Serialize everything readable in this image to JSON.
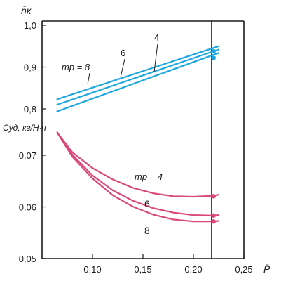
{
  "chart_data": [
    {
      "panel": "top",
      "type": "line",
      "ylabel": "n̄к",
      "ylim": [
        0.8,
        1.0
      ],
      "y_ticks": [
        "1,0",
        "0,9",
        "0,8"
      ],
      "legend_label": "mр = 8",
      "series_labels": [
        "6",
        "4"
      ],
      "series": [
        {
          "name": "8",
          "x": [
            0.065,
            0.225
          ],
          "values": [
            0.823,
            0.95
          ]
        },
        {
          "name": "6",
          "x": [
            0.065,
            0.225
          ],
          "values": [
            0.81,
            0.942
          ]
        },
        {
          "name": "4",
          "x": [
            0.065,
            0.225
          ],
          "values": [
            0.794,
            0.934
          ]
        }
      ],
      "markers": [
        {
          "x": 0.22,
          "y": 0.938
        },
        {
          "x": 0.22,
          "y": 0.922
        }
      ],
      "color": "#1fa8e0"
    },
    {
      "panel": "bottom",
      "type": "line",
      "ylabel": "Cуд, кг/Н·ч",
      "ylim": [
        0.05,
        0.077
      ],
      "y_ticks": [
        "0,07",
        "0,06",
        "0,05"
      ],
      "legend_label": "mр = 4",
      "series_labels": [
        "6",
        "8"
      ],
      "series": [
        {
          "name": "4",
          "x": [
            0.065,
            0.08,
            0.1,
            0.12,
            0.14,
            0.16,
            0.18,
            0.2,
            0.22,
            0.225
          ],
          "values": [
            0.0755,
            0.0715,
            0.0683,
            0.066,
            0.0643,
            0.0632,
            0.0626,
            0.0625,
            0.0627,
            0.0629
          ]
        },
        {
          "name": "6",
          "x": [
            0.065,
            0.08,
            0.1,
            0.12,
            0.14,
            0.16,
            0.18,
            0.2,
            0.22,
            0.225
          ],
          "values": [
            0.0755,
            0.071,
            0.0668,
            0.0638,
            0.0617,
            0.0602,
            0.0593,
            0.0588,
            0.0587,
            0.0588
          ]
        },
        {
          "name": "8",
          "x": [
            0.065,
            0.08,
            0.1,
            0.12,
            0.14,
            0.16,
            0.18,
            0.2,
            0.22,
            0.225
          ],
          "values": [
            0.0755,
            0.0706,
            0.0662,
            0.0628,
            0.0605,
            0.0589,
            0.0579,
            0.0575,
            0.0575,
            0.0576
          ]
        }
      ],
      "markers": [
        {
          "x": 0.22,
          "y": 0.0626
        },
        {
          "x": 0.22,
          "y": 0.0587
        },
        {
          "x": 0.22,
          "y": 0.0575
        }
      ],
      "color": "#d94a7b"
    }
  ],
  "x_axis": {
    "xlabel": "P̄",
    "xlim": [
      0.05,
      0.25
    ],
    "ticks": [
      {
        "value": 0.1,
        "label": "0,10"
      },
      {
        "value": 0.15,
        "label": "0,15"
      },
      {
        "value": 0.2,
        "label": "0,20"
      },
      {
        "value": 0.25,
        "label": "0,25"
      }
    ],
    "reference_line_x": 0.22
  },
  "colors": {
    "frame": "#1a1a1a",
    "top_lines": "#1fa8e0",
    "bottom_lines": "#d94a7b"
  }
}
